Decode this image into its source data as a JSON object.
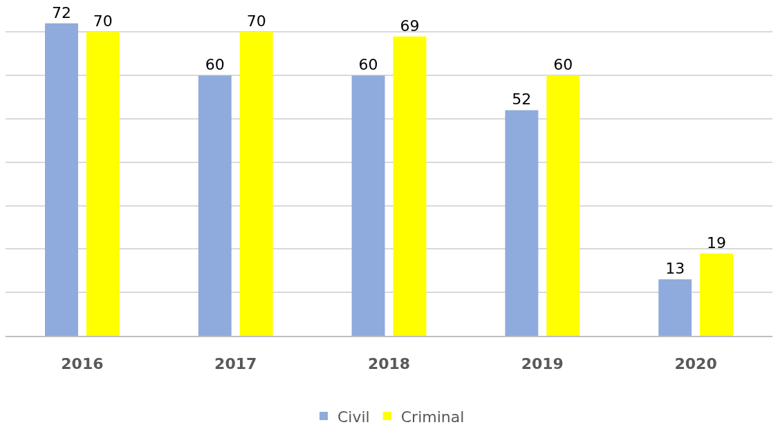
{
  "chart_data": {
    "type": "bar",
    "categories": [
      "2016",
      "2017",
      "2018",
      "2019",
      "2020"
    ],
    "series": [
      {
        "name": "Civil",
        "color": "#8faadc",
        "values": [
          72,
          60,
          60,
          52,
          13
        ]
      },
      {
        "name": "Criminal",
        "color": "#ffff00",
        "values": [
          70,
          70,
          69,
          60,
          19
        ]
      }
    ],
    "yticks": [
      {
        "value": 0,
        "label": null
      },
      {
        "value": 10,
        "label": null
      },
      {
        "value": 20,
        "label": null
      },
      {
        "value": 30,
        "label": null
      },
      {
        "value": 40,
        "label": null
      },
      {
        "value": 50,
        "label": null
      },
      {
        "value": 60,
        "label": null
      },
      {
        "value": 70,
        "label": null
      }
    ],
    "tick_labels": "x",
    "grid": "y",
    "legend": "bottom",
    "data_labels": true
  }
}
